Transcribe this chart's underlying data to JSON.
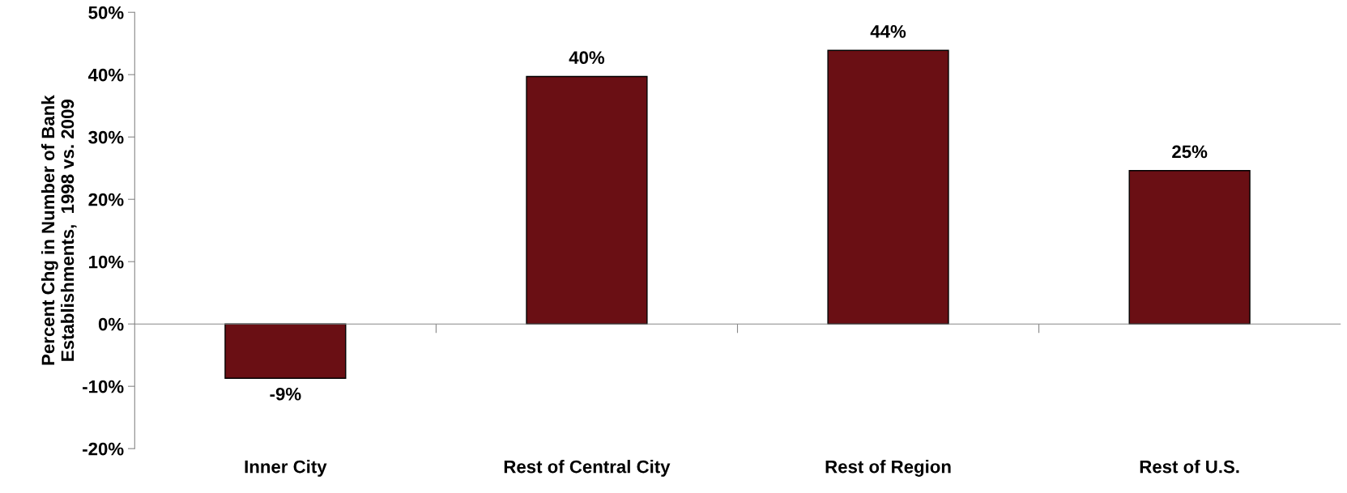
{
  "chart_data": {
    "type": "bar",
    "ylabel": "Percent Chg in Number of Bank\nEstablishments,  1998 vs. 2009",
    "categories": [
      "Inner City",
      "Rest of Central City",
      "Rest of Region",
      "Rest of U.S."
    ],
    "values": [
      -8.7,
      39.7,
      43.9,
      24.6
    ],
    "value_labels": [
      "-9%",
      "40%",
      "44%",
      "25%"
    ],
    "color": "#6a0f14",
    "ylim": [
      -20,
      50
    ],
    "yticks": [
      {
        "value": -20,
        "label": "-20%"
      },
      {
        "value": -10,
        "label": "-10%"
      },
      {
        "value": 0,
        "label": "0%"
      },
      {
        "value": 10,
        "label": "10%"
      },
      {
        "value": 20,
        "label": "20%"
      },
      {
        "value": 30,
        "label": "30%"
      },
      {
        "value": 40,
        "label": "40%"
      },
      {
        "value": 50,
        "label": "50%"
      }
    ],
    "legend": false
  }
}
